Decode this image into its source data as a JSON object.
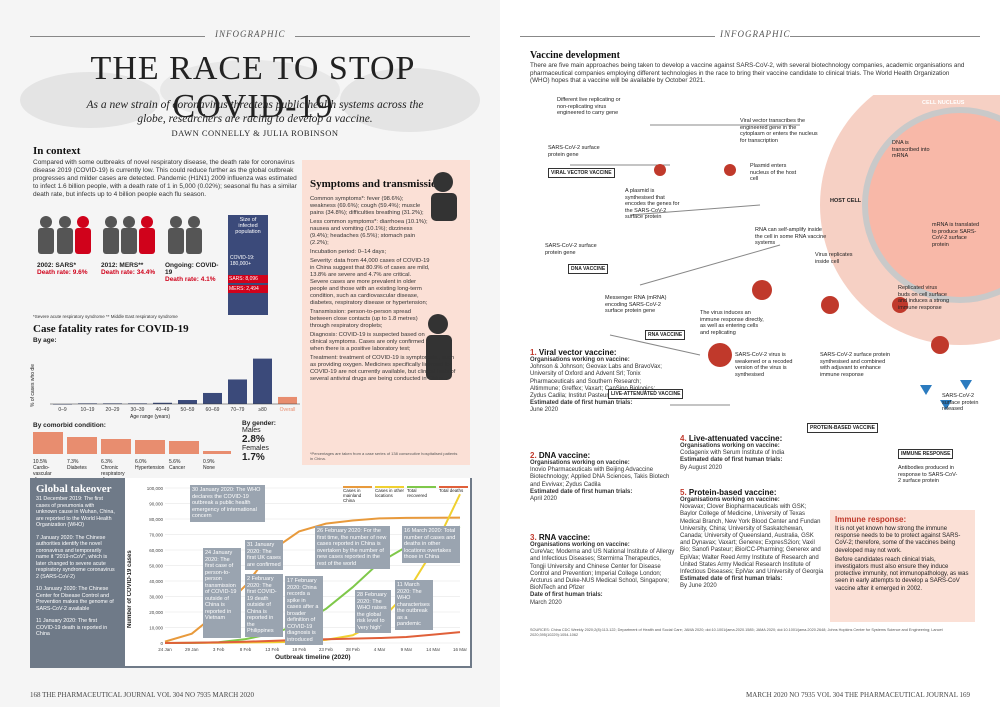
{
  "left": {
    "tag": "INFOGRAPHIC",
    "title": "THE RACE TO STOP COVID-19",
    "subtitle": "As a new strain of coronavirus threatens public health systems across the globe, researchers are racing to develop a vaccine.",
    "byline": "DAWN CONNELLY & JULIA ROBINSON",
    "context": {
      "heading": "In context",
      "text": "Compared with some outbreaks of novel respiratory disease, the death rate for coronavirus disease 2019 (COVID-19) is currently low. This could reduce further as the global outbreak progresses and milder cases are detected. Pandemic (H1N1) 2009 influenza was estimated to infect 1.6 billion people, with a death rate of 1 in 5,000 (0.02%); seasonal flu has a similar death rate, but infects up to 4 billion people each flu season.",
      "outbreaks": [
        {
          "name": "2002: SARS*",
          "rate": "Death rate: 9.6%"
        },
        {
          "name": "2012: MERS**",
          "rate": "Death rate: 34.4%"
        },
        {
          "name": "Ongoing: COVID-19",
          "rate": "Death rate: 4.1%"
        }
      ],
      "pop_label": "Size of infected population",
      "covid_pop": "COVID-19: 180,000+",
      "sars_pop": "SARS: 8,096",
      "mers_pop": "MERS: 2,494",
      "footnote": "*Severe acute respiratory syndrome    ** Middle East respiratory syndrome"
    },
    "cfr": {
      "heading": "Case fatality rates for COVID-19",
      "by_age": "By age:",
      "ylabel": "% of cases who die",
      "xlabel": "Age range (years)",
      "comorbid_heading": "By comorbid condition:",
      "conditions": [
        {
          "value": "10.5%",
          "label": "Cardio-vascular disease"
        },
        {
          "value": "7.3%",
          "label": "Diabetes"
        },
        {
          "value": "6.3%",
          "label": "Chronic respiratory disease"
        },
        {
          "value": "6.0%",
          "label": "Hypertension"
        },
        {
          "value": "5.6%",
          "label": "Cancer"
        },
        {
          "value": "0.9%",
          "label": "None"
        }
      ],
      "gender_heading": "By gender:",
      "males_label": "Males",
      "males_value": "2.8%",
      "females_label": "Females",
      "females_value": "1.7%"
    },
    "symptoms": {
      "heading": "Symptoms and transmission",
      "items": [
        "Common symptoms*: fever (98.6%); weakness (69.6%); cough (59.4%); muscle pains (34.8%); difficulties breathing (31.2%);",
        "Less common symptoms*: diarrhoea (10.1%); nausea and vomiting (10.1%); dizziness (9.4%); headaches (6.5%); stomach pain (2.2%);",
        "Incubation period: 0–14 days;",
        "Severity: data from 44,000 cases of COVID-19 in China suggest that 80.9% of cases are mild, 13.8% are severe and 4.7% are critical. Severe cases are more prevalent in older people and those with an existing long-term condition, such as cardiovascular disease, diabetes, respiratory disease or hypertension;",
        "Transmission: person-to-person spread between close contacts (up to 1.8 metres) through respiratory droplets;",
        "Diagnosis: COVID-19 is suspected based on clinical symptoms. Cases are only confirmed when there is a positive laboratory test;",
        "Treatment: treatment of COVID-19 is symptomatic, such as providing oxygen. Medicines specifically licensed for COVID-19 are not currently available, but clinical trials of several antiviral drugs are being conducted in China."
      ],
      "footnote": "*Percentages are taken from a case series of 138 consecutive hospitalised patients in China."
    },
    "takeover": {
      "heading": "Global takeover",
      "events": [
        "31 December 2019: The first cases of pneumonia with unknown cause in Wuhan, China, are reported to the World Health Organization (WHO)",
        "7 January 2020: The Chinese authorities identify the novel coronavirus and temporarily name it \"2019-nCoV\", which is later changed to severe acute respiratory syndrome coronavirus 2 (SARS-CoV-2)",
        "10 January 2020: The Chinese Center for Disease Control and Prevention makes the genome of SARS-CoV-2 available",
        "11 January 2020: The first COVID-19 death is reported in China"
      ]
    },
    "timeline": {
      "ylabel": "Number of COVID-19 cases",
      "xlabel": "Outbreak timeline (2020)",
      "legend": [
        "Cases in mainland China",
        "Cases in other locations",
        "Total recovered",
        "Total deaths"
      ],
      "notes": [
        "30 January 2020: The WHO declares the COVID-19 outbreak a public health emergency of international concern",
        "24 January 2020: The first case of person-to-person transmission of COVID-19 outside of China is reported in Vietnam",
        "31 January 2020: The first UK cases are confirmed",
        "2 February 2020: The first COVID-19 death outside of China is reported in the Philippines",
        "17 February 2020: China records a spike in cases after a broader definition of COVID-19 diagnosis is introduced",
        "26 February 2020: For the first time, the number of new cases reported in China is overtaken by the number of new cases reported in the rest of the world",
        "28 February 2020: The WHO raises the global risk level to 'very high'",
        "16 March 2020: Total number of cases and deaths in other locations overtakes those in China",
        "11 March 2020: The WHO characterises the outbreak as a pandemic"
      ]
    },
    "footer": "168   THE PHARMACEUTICAL JOURNAL   VOL 304   NO 7935   MARCH 2020"
  },
  "right": {
    "tag": "INFOGRAPHIC",
    "heading": "Vaccine development",
    "intro": "There are five main approaches being taken to develop a vaccine against SARS-CoV-2, with several biotechnology companies, academic organisations and pharmaceutical companies employing different technologies in the race to bring their vaccine candidate to clinical trials. The World Health Organization (WHO) hopes that a vaccine will be available by October 2021.",
    "diagram": {
      "viral_vector": "VIRAL VECTOR VACCINE",
      "dna": "DNA VACCINE",
      "rna": "RNA VACCINE",
      "live": "LIVE-ATTENUATED VACCINE",
      "protein": "PROTEIN-BASED VACCINE",
      "immune": "IMMUNE RESPONSE",
      "cell_nucleus": "CELL NUCLEUS",
      "host_cell": "HOST CELL",
      "l1": "Different live replicating or non-replicating virus engineered to carry gene",
      "l2": "SARS-CoV-2 surface protein gene",
      "l3": "Viral vector transcribes the engineered gene in the cytoplasm or enters the nucleus for transcription",
      "l4": "DNA is transcribed into mRNA",
      "l5": "Plasmid enters nucleus of the host cell",
      "l6": "A plasmid is synthesised that encodes the genes for the SARS-CoV-2 surface protein",
      "l7": "SARS-CoV-2 surface protein gene",
      "l8": "RNA can self-amplify inside the cell in some RNA vaccine systems",
      "l9": "mRNA is translated to produce SARS-CoV-2 surface protein",
      "l10": "Messenger RNA (mRNA) encoding SARS-CoV-2 surface protein gene",
      "l11": "Virus replicates inside cell",
      "l12": "The virus induces an immune response directly, as well as entering cells and replicating",
      "l13": "SARS-CoV-2 virus is weakened or a recoded version of the virus is synthesised",
      "l14": "SARS-CoV-2 surface protein synthesised and combined with adjuvant to enhance immune response",
      "l15": "Replicated virus buds on cell surface and induces a strong immune response",
      "l16": "SARS-CoV-2 surface protein released",
      "l17": "Antibodies produced in response to SARS-CoV-2 surface protein"
    },
    "vaccines": [
      {
        "num": "1.",
        "name": "Viral vector vaccine:",
        "orgs_label": "Organisations working on vaccine:",
        "orgs": "Johnson & Johnson; Geovax Labs and BravoVax; University of Oxford and Advent Srl; Tonix Pharmaceuticals and Southern Research; Altimmune; Greffex; Vaxart; CanSino Biologics; Zydus Cadila; Institut Pasteur",
        "date_label": "Estimated date of first human trials:",
        "date": "June 2020"
      },
      {
        "num": "2.",
        "name": "DNA vaccine:",
        "orgs_label": "Organisations working on vaccine:",
        "orgs": "Inovio Pharmaceuticals with Beijing Advaccine Biotechnology; Applied DNA Sciences, Takis Biotech and Evvivax; Zydus Cadila",
        "date_label": "Estimated date of first human trials:",
        "date": "April 2020"
      },
      {
        "num": "3.",
        "name": "RNA vaccine:",
        "orgs_label": "Organisations working on vaccine:",
        "orgs": "CureVac; Moderna and US National Institute of Allergy and Infectious Diseases; Stermirna Therapeutics, Tongji University and Chinese Center for Disease Control and Prevention; Imperial College London; Arcturus and Duke-NUS Medical School, Singapore; BioNTech and Pfizer",
        "date_label": "Date of first human trials:",
        "date": "March 2020"
      },
      {
        "num": "4.",
        "name": "Live-attenuated vaccine:",
        "orgs_label": "Organisations working on vaccine:",
        "orgs": "Codagenix with Serum Institute of India",
        "date_label": "Estimated date of first human trials:",
        "date": "By August 2020"
      },
      {
        "num": "5.",
        "name": "Protein-based vaccine:",
        "orgs_label": "Organisations working on vaccine:",
        "orgs": "Novavax; Clover Biopharmaceuticals with GSK; Baylor College of Medicine, University of Texas Medical Branch, New York Blood Center and Fundan University, China; University of Saskatchewan, Canada; University of Queensland, Australia, GSK and Dynavax; Vaxart; Generex; ExpresS2ion; Vaxil Bio; Sanofi Pasteur; iBio/CC-Pharming; Generex and EpiVax; Walter Reed Army Institute of Research and United States Army Medical Research Institute of Infectious Diseases; EpiVax and University of Georgia",
        "date_label": "Estimated date of first human trials:",
        "date": "By June 2020"
      }
    ],
    "immune_box": {
      "heading": "Immune response:",
      "items": [
        "It is not yet known how strong the immune response needs to be to protect against SARS-CoV-2; therefore, some of the vaccines being developed may not work.",
        "Before candidates reach clinical trials, investigators must also ensure they induce protective immunity, not immunopathology, as was seen in early attempts to develop a SARS-CoV vaccine after it emerged in 2002."
      ]
    },
    "sources": "SOURCES: China CDC Weekly 2020;2(8):113-122; Department of Health and Social Care; JAMA 2020; doi:10.1001/jama.2020.1585; JAMA 2020; doi:10.1001/jama.2020.2648; Johns Hopkins Center for Systems Science and Engineering; Lancet 2020;395(10229):1054-1062",
    "footer": "MARCH 2020   NO 7935   VOL 304   THE PHARMACEUTICAL JOURNAL   169"
  },
  "chart_data": [
    {
      "type": "bar",
      "title": "Case fatality rates for COVID-19 — by age",
      "xlabel": "Age range (years)",
      "ylabel": "% of cases who die",
      "categories": [
        "0–9",
        "10–19",
        "20–29",
        "30–39",
        "40–49",
        "50–59",
        "60–69",
        "70–79",
        "≥80",
        "Overall"
      ],
      "values": [
        0,
        0.2,
        0.2,
        0.2,
        0.4,
        1.3,
        3.6,
        8.0,
        14.8,
        2.3
      ],
      "ylim": [
        0,
        15
      ]
    },
    {
      "type": "line",
      "xlabel": "Outbreak timeline (2020)",
      "ylabel": "Number of COVID-19 cases",
      "categories": [
        "24 Jan",
        "29 Jan",
        "3 Feb",
        "8 Feb",
        "13 Feb",
        "18 Feb",
        "23 Feb",
        "28 Feb",
        "4 Mar",
        "9 Mar",
        "14 Mar",
        "16 Mar"
      ],
      "ylim": [
        0,
        100000
      ],
      "series": [
        {
          "name": "Cases in mainland China",
          "values": [
            900,
            6000,
            20000,
            37000,
            60000,
            72000,
            77000,
            79000,
            80400,
            80700,
            80800,
            80860
          ]
        },
        {
          "name": "Cases in other locations",
          "values": [
            20,
            100,
            200,
            300,
            500,
            900,
            2000,
            5000,
            14000,
            32000,
            60000,
            96000
          ]
        },
        {
          "name": "Total recovered",
          "values": [
            30,
            120,
            500,
            2500,
            6000,
            12000,
            22000,
            36000,
            52000,
            62000,
            70000,
            75000
          ]
        },
        {
          "name": "Total deaths",
          "values": [
            25,
            130,
            420,
            800,
            1400,
            2000,
            2450,
            2850,
            3200,
            3900,
            5400,
            7000
          ]
        }
      ]
    }
  ]
}
